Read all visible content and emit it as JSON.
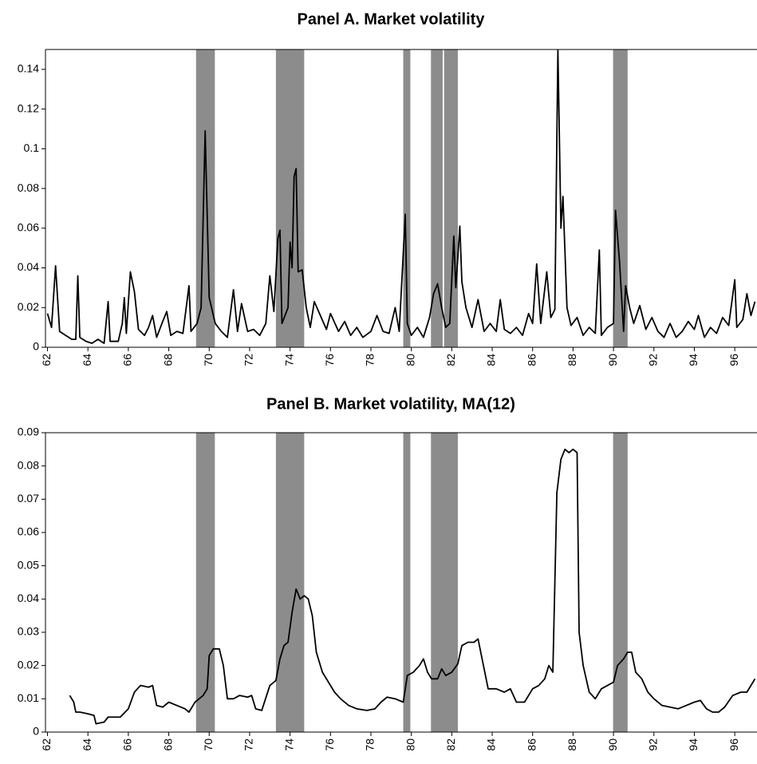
{
  "chart_data": [
    {
      "type": "line",
      "title": "Panel A. Market volatility",
      "color": "#000000",
      "shade_color": "#8c8c8c",
      "xlim": [
        61.9,
        97.1
      ],
      "xticks": [
        62,
        64,
        66,
        68,
        70,
        72,
        74,
        76,
        78,
        80,
        82,
        84,
        86,
        88,
        90,
        92,
        94,
        96
      ],
      "ylim": [
        0,
        0.15
      ],
      "yticks": [
        0,
        0.02,
        0.04,
        0.06,
        0.08,
        0.1,
        0.12,
        0.14
      ],
      "shaded_regions": [
        [
          69.35,
          70.28
        ],
        [
          73.3,
          74.7
        ],
        [
          79.6,
          79.95
        ],
        [
          80.97,
          81.55
        ],
        [
          81.62,
          82.3
        ],
        [
          89.98,
          90.7
        ]
      ],
      "x": [
        62.0,
        62.2,
        62.4,
        62.6,
        62.9,
        63.2,
        63.4,
        63.5,
        63.6,
        63.9,
        64.2,
        64.5,
        64.8,
        65.0,
        65.1,
        65.5,
        65.7,
        65.8,
        65.9,
        66.1,
        66.3,
        66.5,
        66.8,
        67.0,
        67.2,
        67.4,
        67.7,
        67.9,
        68.1,
        68.4,
        68.7,
        69.0,
        69.1,
        69.4,
        69.6,
        69.8,
        70.0,
        70.3,
        70.6,
        70.9,
        71.2,
        71.4,
        71.6,
        71.9,
        72.2,
        72.5,
        72.8,
        73.0,
        73.2,
        73.4,
        73.5,
        73.6,
        73.9,
        74.0,
        74.1,
        74.2,
        74.3,
        74.4,
        74.6,
        74.8,
        75.0,
        75.2,
        75.5,
        75.8,
        76.0,
        76.4,
        76.7,
        77.0,
        77.3,
        77.6,
        78.0,
        78.3,
        78.6,
        78.9,
        79.2,
        79.4,
        79.7,
        79.8,
        80.0,
        80.3,
        80.6,
        80.9,
        81.1,
        81.3,
        81.5,
        81.7,
        81.9,
        82.1,
        82.2,
        82.4,
        82.5,
        82.7,
        83.0,
        83.3,
        83.6,
        83.9,
        84.2,
        84.4,
        84.6,
        84.9,
        85.2,
        85.5,
        85.8,
        86.0,
        86.2,
        86.4,
        86.7,
        86.9,
        87.1,
        87.25,
        87.4,
        87.5,
        87.7,
        87.9,
        88.2,
        88.5,
        88.8,
        89.1,
        89.3,
        89.4,
        89.7,
        90.0,
        90.1,
        90.3,
        90.5,
        90.6,
        90.8,
        91.0,
        91.3,
        91.6,
        91.9,
        92.2,
        92.5,
        92.8,
        93.1,
        93.4,
        93.7,
        94.0,
        94.2,
        94.5,
        94.8,
        95.1,
        95.4,
        95.7,
        96.0,
        96.1,
        96.4,
        96.6,
        96.8,
        97.0
      ],
      "values": [
        0.017,
        0.01,
        0.041,
        0.008,
        0.006,
        0.004,
        0.004,
        0.036,
        0.005,
        0.003,
        0.002,
        0.004,
        0.002,
        0.023,
        0.003,
        0.003,
        0.012,
        0.025,
        0.007,
        0.038,
        0.028,
        0.009,
        0.006,
        0.01,
        0.016,
        0.005,
        0.013,
        0.018,
        0.006,
        0.008,
        0.007,
        0.031,
        0.008,
        0.012,
        0.02,
        0.109,
        0.025,
        0.012,
        0.008,
        0.005,
        0.029,
        0.008,
        0.022,
        0.008,
        0.009,
        0.006,
        0.012,
        0.036,
        0.018,
        0.055,
        0.059,
        0.012,
        0.02,
        0.053,
        0.04,
        0.086,
        0.09,
        0.038,
        0.039,
        0.02,
        0.01,
        0.023,
        0.016,
        0.009,
        0.017,
        0.008,
        0.013,
        0.006,
        0.01,
        0.005,
        0.008,
        0.016,
        0.008,
        0.007,
        0.02,
        0.008,
        0.067,
        0.012,
        0.006,
        0.01,
        0.005,
        0.015,
        0.027,
        0.032,
        0.02,
        0.01,
        0.012,
        0.056,
        0.03,
        0.061,
        0.033,
        0.02,
        0.01,
        0.024,
        0.008,
        0.012,
        0.008,
        0.024,
        0.009,
        0.007,
        0.01,
        0.006,
        0.017,
        0.012,
        0.042,
        0.012,
        0.038,
        0.015,
        0.019,
        0.15,
        0.06,
        0.076,
        0.02,
        0.011,
        0.015,
        0.006,
        0.01,
        0.007,
        0.049,
        0.006,
        0.01,
        0.012,
        0.069,
        0.043,
        0.008,
        0.031,
        0.02,
        0.012,
        0.021,
        0.009,
        0.015,
        0.008,
        0.005,
        0.012,
        0.005,
        0.008,
        0.013,
        0.009,
        0.016,
        0.005,
        0.01,
        0.007,
        0.015,
        0.011,
        0.034,
        0.01,
        0.014,
        0.027,
        0.016,
        0.023
      ]
    },
    {
      "type": "line",
      "title": "Panel B. Market volatility, MA(12)",
      "color": "#000000",
      "shade_color": "#8c8c8c",
      "xlim": [
        61.9,
        97.1
      ],
      "xticks": [
        62,
        64,
        66,
        68,
        70,
        72,
        74,
        76,
        78,
        80,
        82,
        84,
        86,
        88,
        90,
        92,
        94,
        96
      ],
      "ylim": [
        0,
        0.09
      ],
      "yticks": [
        0,
        0.01,
        0.02,
        0.03,
        0.04,
        0.05,
        0.06,
        0.07,
        0.08,
        0.09
      ],
      "shaded_regions": [
        [
          69.35,
          70.28
        ],
        [
          73.3,
          74.7
        ],
        [
          79.6,
          79.95
        ],
        [
          80.97,
          82.3
        ],
        [
          89.98,
          90.7
        ]
      ],
      "x": [
        63.1,
        63.3,
        63.4,
        63.6,
        64.0,
        64.3,
        64.4,
        64.8,
        65.0,
        65.6,
        66.0,
        66.3,
        66.6,
        67.0,
        67.2,
        67.4,
        67.7,
        68.0,
        68.4,
        68.8,
        69.0,
        69.3,
        69.7,
        69.9,
        70.0,
        70.2,
        70.5,
        70.7,
        70.9,
        71.2,
        71.5,
        71.9,
        72.1,
        72.3,
        72.6,
        73.0,
        73.3,
        73.5,
        73.7,
        73.9,
        74.1,
        74.3,
        74.5,
        74.7,
        74.9,
        75.1,
        75.3,
        75.6,
        75.9,
        76.2,
        76.5,
        76.9,
        77.3,
        77.8,
        78.2,
        78.5,
        78.8,
        79.2,
        79.6,
        79.8,
        80.1,
        80.4,
        80.6,
        80.8,
        81.0,
        81.3,
        81.5,
        81.7,
        82.0,
        82.3,
        82.5,
        82.8,
        83.1,
        83.3,
        83.5,
        83.8,
        84.2,
        84.6,
        84.9,
        85.2,
        85.6,
        86.0,
        86.3,
        86.6,
        86.8,
        87.0,
        87.2,
        87.4,
        87.6,
        87.8,
        88.0,
        88.2,
        88.3,
        88.5,
        88.8,
        89.1,
        89.4,
        89.7,
        90.0,
        90.2,
        90.5,
        90.7,
        90.9,
        91.1,
        91.4,
        91.7,
        92.0,
        92.4,
        92.8,
        93.2,
        93.6,
        94.0,
        94.3,
        94.6,
        94.9,
        95.2,
        95.5,
        95.9,
        96.3,
        96.6,
        96.9,
        97.0
      ],
      "values": [
        0.011,
        0.009,
        0.006,
        0.006,
        0.0055,
        0.005,
        0.0025,
        0.003,
        0.0045,
        0.0045,
        0.007,
        0.012,
        0.014,
        0.0135,
        0.014,
        0.008,
        0.0075,
        0.009,
        0.008,
        0.007,
        0.006,
        0.009,
        0.011,
        0.013,
        0.023,
        0.025,
        0.025,
        0.02,
        0.01,
        0.01,
        0.011,
        0.0105,
        0.011,
        0.007,
        0.0065,
        0.014,
        0.0155,
        0.022,
        0.026,
        0.027,
        0.036,
        0.043,
        0.04,
        0.041,
        0.04,
        0.035,
        0.024,
        0.018,
        0.015,
        0.012,
        0.01,
        0.008,
        0.007,
        0.0065,
        0.007,
        0.009,
        0.0105,
        0.01,
        0.009,
        0.017,
        0.018,
        0.02,
        0.022,
        0.018,
        0.016,
        0.016,
        0.019,
        0.017,
        0.018,
        0.0205,
        0.026,
        0.027,
        0.027,
        0.028,
        0.022,
        0.013,
        0.013,
        0.012,
        0.013,
        0.009,
        0.009,
        0.013,
        0.014,
        0.016,
        0.02,
        0.018,
        0.072,
        0.082,
        0.085,
        0.084,
        0.085,
        0.084,
        0.03,
        0.02,
        0.012,
        0.01,
        0.013,
        0.014,
        0.015,
        0.02,
        0.022,
        0.024,
        0.024,
        0.018,
        0.016,
        0.012,
        0.01,
        0.008,
        0.0075,
        0.007,
        0.008,
        0.009,
        0.0095,
        0.007,
        0.006,
        0.006,
        0.0075,
        0.011,
        0.012,
        0.012,
        0.015,
        0.016
      ]
    }
  ]
}
